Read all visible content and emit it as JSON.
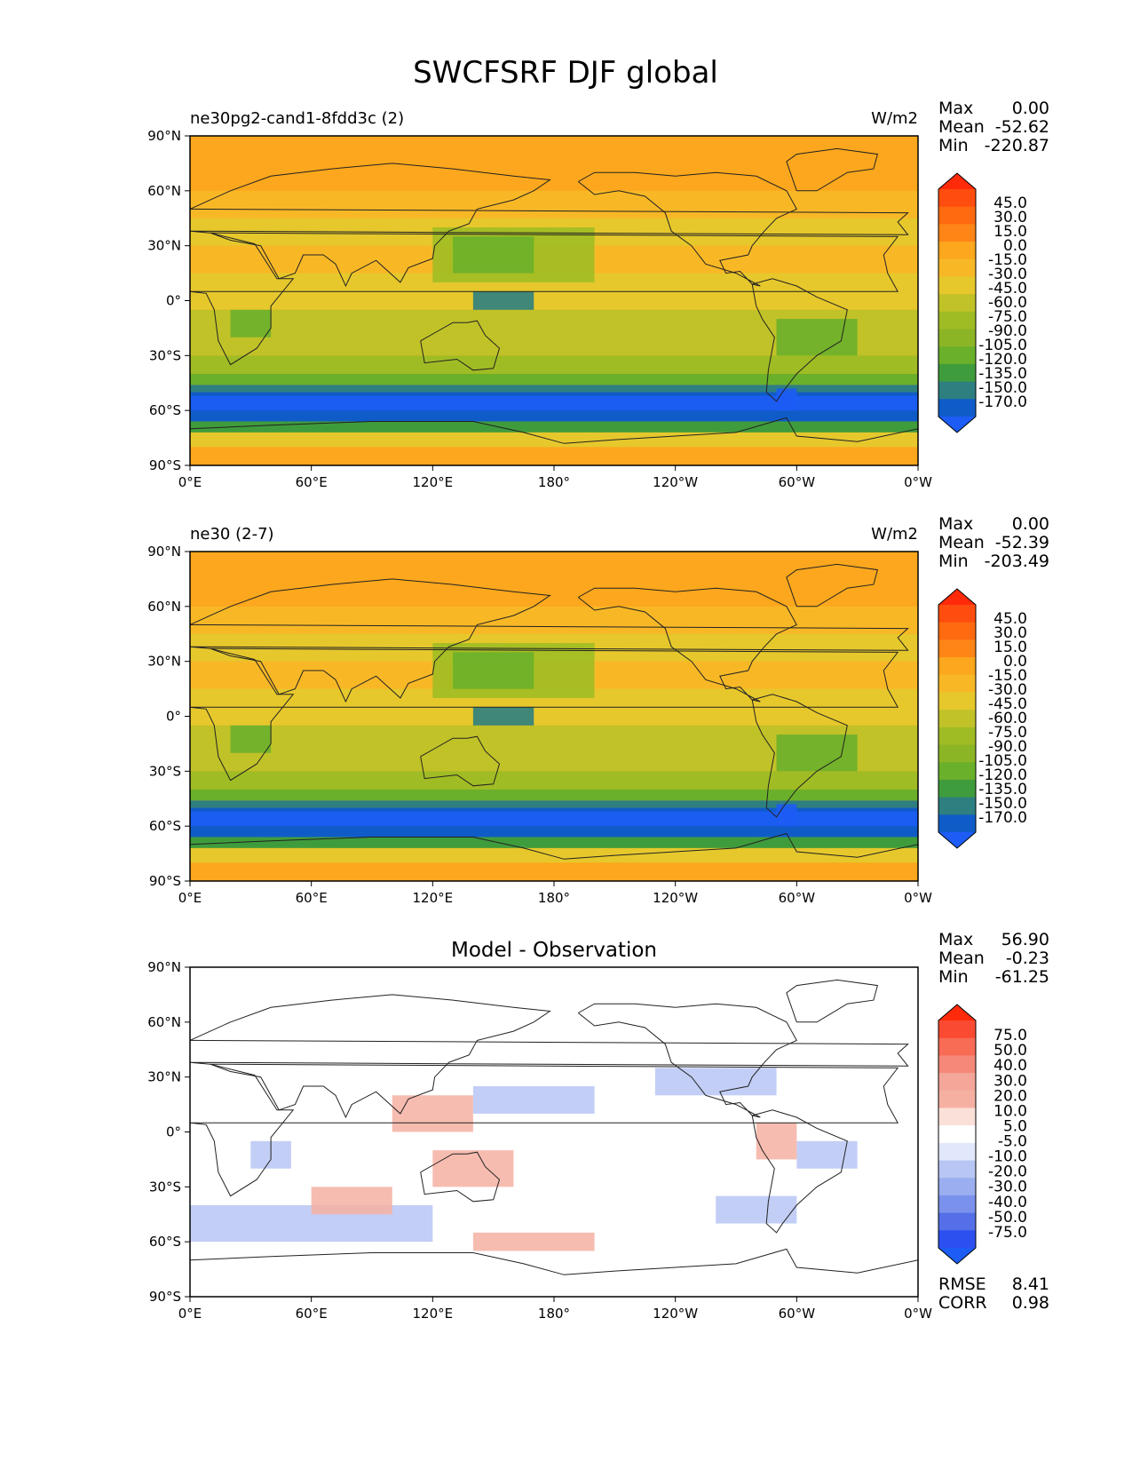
{
  "title": "SWCFSRF DJF global",
  "x_ticks": [
    "0°E",
    "60°E",
    "120°E",
    "180°",
    "120°W",
    "60°W",
    "0°W"
  ],
  "y_ticks": [
    "90°N",
    "60°N",
    "30°N",
    "0°",
    "30°S",
    "60°S",
    "90°S"
  ],
  "colors": {
    "orange": "#fca71d",
    "lightorange": "#f8b826",
    "yellow": "#e6c82c",
    "olive": "#c1c228",
    "lightgreen": "#a0bc24",
    "green": "#6ab02a",
    "darkgreen": "#3f9c3c",
    "teal": "#2d7f80",
    "blue": "#0f5cc8",
    "brightblue": "#1d5cf5",
    "red": "#ff2a0a",
    "diff_red": "#f6b0a2",
    "diff_blue": "#b7c6f4",
    "diff_white": "#ffffff"
  },
  "chart_data": [
    {
      "type": "heatmap",
      "panel": "test",
      "title_left": "ne30pg2-cand1-8fdd3c (2)",
      "title_right": "W/m2",
      "title_center": "",
      "stats": [
        {
          "label": "Max",
          "value": "0.00"
        },
        {
          "label": "Mean",
          "value": "-52.62"
        },
        {
          "label": "Min",
          "value": "-220.87"
        }
      ],
      "colorbar": [
        "45.0",
        "30.0",
        "15.0",
        "0.0",
        "-15.0",
        "-30.0",
        "-45.0",
        "-60.0",
        "-75.0",
        "-90.0",
        "-105.0",
        "-120.0",
        "-135.0",
        "-150.0",
        "-170.0"
      ],
      "xlim": [
        0,
        360
      ],
      "ylim": [
        -90,
        90
      ]
    },
    {
      "type": "heatmap",
      "panel": "reference",
      "title_left": "ne30 (2-7)",
      "title_right": "W/m2",
      "title_center": "",
      "stats": [
        {
          "label": "Max",
          "value": "0.00"
        },
        {
          "label": "Mean",
          "value": "-52.39"
        },
        {
          "label": "Min",
          "value": "-203.49"
        }
      ],
      "colorbar": [
        "45.0",
        "30.0",
        "15.0",
        "0.0",
        "-15.0",
        "-30.0",
        "-45.0",
        "-60.0",
        "-75.0",
        "-90.0",
        "-105.0",
        "-120.0",
        "-135.0",
        "-150.0",
        "-170.0"
      ],
      "xlim": [
        0,
        360
      ],
      "ylim": [
        -90,
        90
      ]
    },
    {
      "type": "heatmap",
      "panel": "difference",
      "title_left": "",
      "title_right": "",
      "title_center": "Model - Observation",
      "stats": [
        {
          "label": "Max",
          "value": "56.90"
        },
        {
          "label": "Mean",
          "value": "-0.23"
        },
        {
          "label": "Min",
          "value": "-61.25"
        }
      ],
      "colorbar": [
        "75.0",
        "50.0",
        "40.0",
        "30.0",
        "20.0",
        "10.0",
        "5.0",
        "-5.0",
        "-10.0",
        "-20.0",
        "-30.0",
        "-40.0",
        "-50.0",
        "-75.0"
      ],
      "xlim": [
        0,
        360
      ],
      "ylim": [
        -90,
        90
      ],
      "metrics": [
        {
          "label": "RMSE",
          "value": "8.41"
        },
        {
          "label": "CORR",
          "value": "0.98"
        }
      ]
    }
  ]
}
